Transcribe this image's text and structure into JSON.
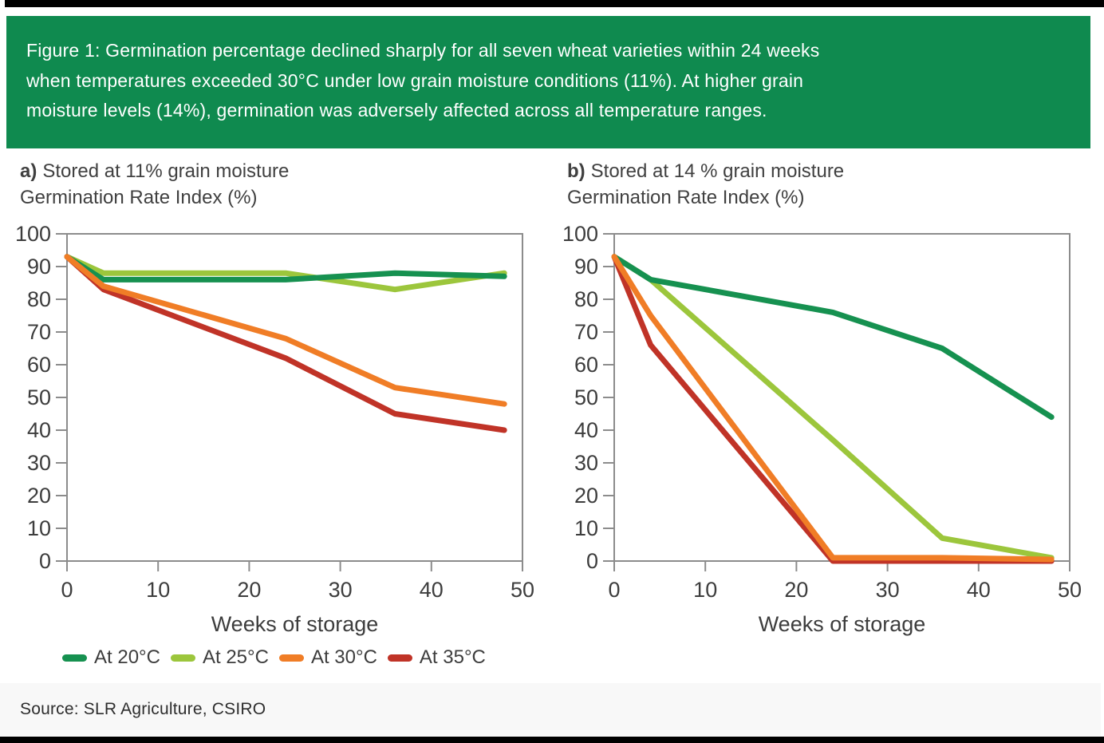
{
  "caption": {
    "bg_color": "#0f8a4f",
    "lines": [
      "Figure 1: Germination percentage declined sharply for all seven wheat varieties within 24 weeks",
      "when temperatures exceeded 30°C under low grain moisture conditions (11%). At higher grain",
      "moisture levels (14%), germination was adversely affected across all temperature ranges."
    ]
  },
  "source": {
    "text": "Source: SLR Agriculture, CSIRO"
  },
  "colors": {
    "at_20c": "#169150",
    "at_25c": "#9cc63c",
    "at_30c": "#f07d26",
    "at_35c": "#c03327",
    "axis": "#8c8c8c",
    "tick_text": "#3d3d3d"
  },
  "chart_data": [
    {
      "type": "line",
      "title_prefix": "a)",
      "title": "Stored at 11% grain moisture",
      "ylabel": "Germination Rate Index (%)",
      "xlabel": "Weeks of storage",
      "x": [
        0,
        4,
        24,
        36,
        48
      ],
      "xlim": [
        0,
        50
      ],
      "ylim": [
        0,
        100
      ],
      "xticks": [
        0,
        10,
        20,
        30,
        40,
        50
      ],
      "yticks": [
        0,
        10,
        20,
        30,
        40,
        50,
        60,
        70,
        80,
        90,
        100
      ],
      "grid": false,
      "legend": "below-left",
      "series": [
        {
          "name": "At 20°C",
          "color": "#169150",
          "values": [
            93,
            86,
            86,
            88,
            87
          ]
        },
        {
          "name": "At 25°C",
          "color": "#9cc63c",
          "values": [
            93,
            88,
            88,
            83,
            88
          ]
        },
        {
          "name": "At 30°C",
          "color": "#f07d26",
          "values": [
            93,
            84,
            68,
            53,
            48
          ]
        },
        {
          "name": "At 35°C",
          "color": "#c03327",
          "values": [
            93,
            83,
            62,
            45,
            40
          ]
        }
      ]
    },
    {
      "type": "line",
      "title_prefix": "b)",
      "title": "Stored at 14 % grain moisture",
      "ylabel": "Germination Rate Index (%)",
      "xlabel": "Weeks of storage",
      "x": [
        0,
        4,
        24,
        36,
        48
      ],
      "xlim": [
        0,
        50
      ],
      "ylim": [
        0,
        100
      ],
      "xticks": [
        0,
        10,
        20,
        30,
        40,
        50
      ],
      "yticks": [
        0,
        10,
        20,
        30,
        40,
        50,
        60,
        70,
        80,
        90,
        100
      ],
      "grid": false,
      "legend": "none",
      "series": [
        {
          "name": "At 20°C",
          "color": "#169150",
          "values": [
            93,
            86,
            76,
            65,
            44
          ]
        },
        {
          "name": "At 25°C",
          "color": "#9cc63c",
          "values": [
            93,
            86,
            37,
            7,
            1
          ]
        },
        {
          "name": "At 30°C",
          "color": "#f07d26",
          "values": [
            93,
            75,
            1,
            1,
            0.5
          ]
        },
        {
          "name": "At 35°C",
          "color": "#c03327",
          "values": [
            93,
            66,
            0,
            0,
            0
          ]
        }
      ]
    }
  ]
}
